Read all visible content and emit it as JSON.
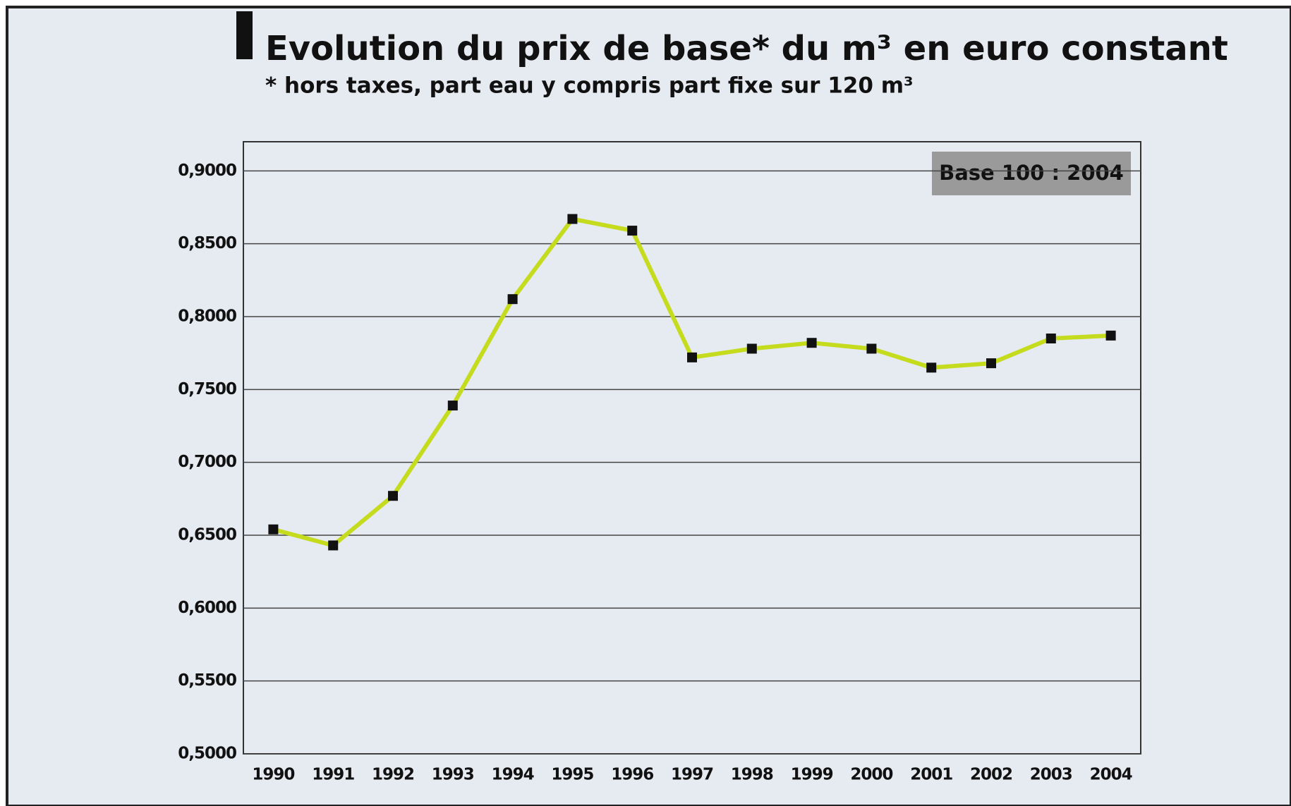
{
  "chart_data": {
    "type": "line",
    "title": "Evolution du prix de base* du m³ en euro constant",
    "subtitle": "* hors taxes, part eau y compris part fixe sur 120 m³",
    "annotation": "Base 100 : 2004",
    "categories": [
      "1990",
      "1991",
      "1992",
      "1993",
      "1994",
      "1995",
      "1996",
      "1997",
      "1998",
      "1999",
      "2000",
      "2001",
      "2002",
      "2003",
      "2004"
    ],
    "series": [
      {
        "color": "#c5dc1e",
        "values": [
          0.654,
          0.643,
          0.677,
          0.739,
          0.812,
          0.867,
          0.859,
          0.772,
          0.778,
          0.782,
          0.778,
          0.765,
          0.768,
          0.785,
          0.787
        ]
      }
    ],
    "ylim": [
      0.5,
      0.92
    ],
    "yticks": [
      {
        "value": 0.5,
        "label": "0,5000"
      },
      {
        "value": 0.55,
        "label": "0,5500"
      },
      {
        "value": 0.6,
        "label": "0,6000"
      },
      {
        "value": 0.65,
        "label": "0,6500"
      },
      {
        "value": 0.7,
        "label": "0,7000"
      },
      {
        "value": 0.75,
        "label": "0,7500"
      },
      {
        "value": 0.8,
        "label": "0,8000"
      },
      {
        "value": 0.85,
        "label": "0,8500"
      },
      {
        "value": 0.9,
        "label": "0,9000"
      }
    ],
    "grid": true
  }
}
